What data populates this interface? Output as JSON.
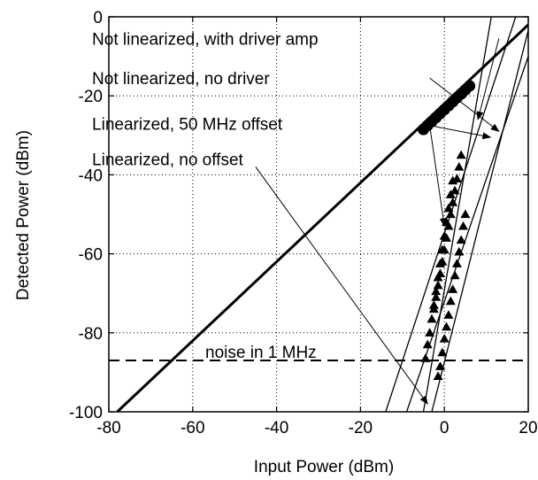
{
  "chart_data": {
    "type": "scatter",
    "title": "",
    "xlabel": "Input Power (dBm)",
    "ylabel": "Detected Power (dBm)",
    "xlim": [
      -80,
      20
    ],
    "ylim": [
      -100,
      0
    ],
    "xticks": [
      -80,
      -60,
      -40,
      -20,
      0,
      20
    ],
    "yticks": [
      0,
      -20,
      -40,
      -60,
      -80,
      -100
    ],
    "x_tick_labels": [
      "-80",
      "-60",
      "-40",
      "-20",
      "0",
      "20"
    ],
    "y_tick_labels": [
      "0",
      "-20",
      "-40",
      "-60",
      "-80",
      "-100"
    ],
    "grid": true,
    "grid_style": "dotted",
    "lines": [
      {
        "from": [
          -78,
          -100
        ],
        "to": [
          22,
          0
        ],
        "weight": "bold"
      },
      {
        "from": [
          -14,
          -100
        ],
        "to": [
          17,
          0
        ],
        "weight": "thin"
      },
      {
        "from": [
          -9,
          -100
        ],
        "to": [
          20,
          -10
        ],
        "weight": "thin"
      },
      {
        "from": [
          -3,
          -100
        ],
        "to": [
          22,
          5
        ],
        "weight": "thin"
      },
      {
        "from": [
          -5,
          -100
        ],
        "to": [
          12,
          5
        ],
        "weight": "thin"
      }
    ],
    "reference_line": {
      "y": -87,
      "label": "noise in 1 MHz",
      "style": "dashed"
    },
    "series": [
      {
        "marker": "circle",
        "x": [
          -5,
          -4,
          -3,
          -2,
          -1,
          0,
          1,
          2,
          3,
          4,
          5,
          6
        ],
        "y": [
          -28.5,
          -27.5,
          -26.5,
          -25.5,
          -24.5,
          -23.5,
          -22.5,
          -21.5,
          -20.5,
          -19.5,
          -18.5,
          -17.5
        ]
      },
      {
        "marker": "triangle",
        "x": [
          -4.5,
          -4.0,
          -3.5,
          -3.0,
          -2.5,
          -2.0,
          -1.5,
          -1.0,
          -0.5,
          0.0,
          0.5,
          1.0,
          1.5,
          2.0
        ],
        "y": [
          -86.5,
          -83.0,
          -80.0,
          -76.5,
          -73.0,
          -69.5,
          -66.0,
          -62.5,
          -59.0,
          -55.5,
          -52.0,
          -48.5,
          -45.0,
          -41.5
        ]
      },
      {
        "marker": "triangle",
        "x": [
          -1.5,
          -1.0,
          -0.5,
          0.0,
          0.5,
          1.0,
          1.5,
          2.0,
          2.5,
          3.0,
          3.5,
          4.0,
          4.5,
          5.0
        ],
        "y": [
          -91.0,
          -88.5,
          -85.0,
          -81.5,
          -78.5,
          -75.5,
          -72.0,
          -69.0,
          -65.5,
          -62.5,
          -59.5,
          -56.5,
          -53.0,
          -50.0
        ]
      },
      {
        "marker": "triangle",
        "x": [
          -2.5,
          -2.0,
          -1.5,
          -1.0,
          -0.5,
          0.0,
          0.5,
          1.0,
          1.5,
          2.0,
          2.5,
          3.0,
          3.5,
          4.0
        ],
        "y": [
          -74.0,
          -71.0,
          -68.0,
          -65.0,
          -62.0,
          -59.0,
          -56.0,
          -53.0,
          -50.0,
          -47.0,
          -44.0,
          -41.0,
          -38.0,
          -35.0
        ]
      }
    ],
    "annotations": [
      {
        "text": "Not linearized, with driver amp",
        "text_at": [
          -84,
          -5.5
        ],
        "arrow_from": [
          13,
          -5.5
        ],
        "arrow_to": [
          8,
          -26
        ]
      },
      {
        "text": "Not linearized, no driver",
        "text_at": [
          -84,
          -15.5
        ],
        "arrow_from": [
          -3.5,
          -15.5
        ],
        "arrow_to": [
          13,
          -29
        ]
      },
      {
        "text": "Linearized, 50 MHz offset",
        "text_at": [
          -84,
          -27
        ],
        "arrow_from": [
          -3.5,
          -27.5
        ],
        "arrow_to": [
          11,
          -30.5
        ],
        "arrow_to_2": [
          0,
          -53
        ]
      },
      {
        "text": "Linearized, no offset",
        "text_at": [
          -84,
          -36
        ],
        "arrow_from": [
          -45,
          -38
        ],
        "arrow_to": [
          -4,
          -98
        ]
      }
    ]
  }
}
